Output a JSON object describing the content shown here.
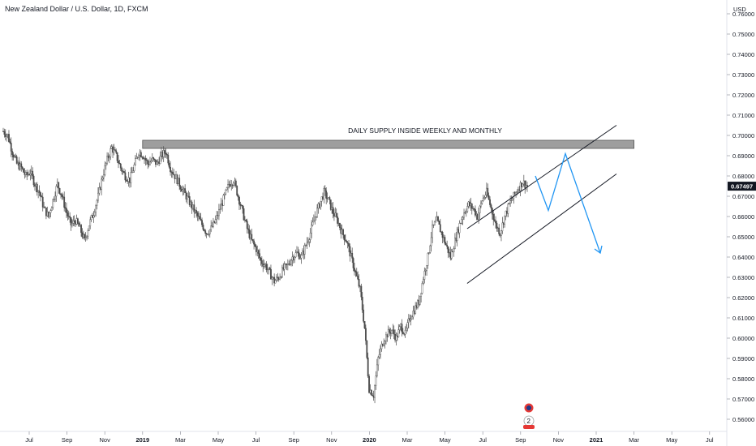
{
  "header": {
    "title": "New Zealand Dollar / U.S. Dollar, 1D, FXCM"
  },
  "currency_label": "USD",
  "chart_data": {
    "type": "candlestick",
    "title": "New Zealand Dollar / U.S. Dollar, 1D, FXCM",
    "y_axis": {
      "unit": "USD",
      "ticks": [
        "0.56000",
        "0.57000",
        "0.58000",
        "0.59000",
        "0.60000",
        "0.61000",
        "0.62000",
        "0.63000",
        "0.64000",
        "0.65000",
        "0.66000",
        "0.67000",
        "0.68000",
        "0.69000",
        "0.70000",
        "0.71000",
        "0.72000",
        "0.73000",
        "0.74000",
        "0.75000",
        "0.76000"
      ],
      "range": [
        0.554,
        0.766
      ]
    },
    "x_axis": {
      "ticks": [
        "Jul",
        "Sep",
        "Nov",
        "2019",
        "Mar",
        "May",
        "Jul",
        "Sep",
        "Nov",
        "2020",
        "Mar",
        "May",
        "Jul",
        "Sep",
        "Nov",
        "2021",
        "Mar",
        "May",
        "Jul"
      ]
    },
    "last_price": {
      "label": "0.67497",
      "value": 0.67497
    },
    "series": [
      {
        "values_sampled": [
          0.702,
          0.7,
          0.692,
          0.686,
          0.684,
          0.68,
          0.682,
          0.676,
          0.672,
          0.664,
          0.66,
          0.668,
          0.676,
          0.67,
          0.662,
          0.656,
          0.658,
          0.654,
          0.648,
          0.656,
          0.662,
          0.67,
          0.68,
          0.688,
          0.694,
          0.69,
          0.684,
          0.68,
          0.678,
          0.685,
          0.692,
          0.69,
          0.686,
          0.688,
          0.686,
          0.69,
          0.692,
          0.684,
          0.68,
          0.676,
          0.672,
          0.668,
          0.664,
          0.66,
          0.656,
          0.652,
          0.654,
          0.658,
          0.664,
          0.67,
          0.676,
          0.678,
          0.67,
          0.662,
          0.654,
          0.648,
          0.644,
          0.638,
          0.636,
          0.632,
          0.628,
          0.63,
          0.634,
          0.636,
          0.64,
          0.642,
          0.64,
          0.646,
          0.652,
          0.66,
          0.666,
          0.672,
          0.668,
          0.662,
          0.658,
          0.652,
          0.648,
          0.64,
          0.632,
          0.624,
          0.605,
          0.575,
          0.572,
          0.59,
          0.598,
          0.602,
          0.604,
          0.6,
          0.606,
          0.602,
          0.61,
          0.614,
          0.618,
          0.63,
          0.64,
          0.654,
          0.658,
          0.652,
          0.646,
          0.64,
          0.648,
          0.656,
          0.662,
          0.666,
          0.664,
          0.66,
          0.668,
          0.672,
          0.664,
          0.656,
          0.652,
          0.66,
          0.666,
          0.67,
          0.674,
          0.677,
          0.675
        ]
      }
    ],
    "annotations": [
      {
        "type": "text",
        "text": "DAILY SUPPLY INSIDE WEEKLY AND MONTHLY"
      },
      {
        "type": "zone",
        "label": "supply",
        "from": 0.6936,
        "to": 0.6976,
        "x_from": "2018-12",
        "x_to": "2021-02"
      },
      {
        "type": "channel",
        "upper": [
          [
            "2020-05",
            0.654
          ],
          [
            "2020-12",
            0.705
          ]
        ],
        "lower": [
          [
            "2020-05",
            0.627
          ],
          [
            "2020-12",
            0.681
          ]
        ]
      },
      {
        "type": "projection_arrow",
        "color": "#2196f3",
        "path": [
          [
            "2020-09",
            0.68
          ],
          [
            "2020-10",
            0.663
          ],
          [
            "2020-11",
            0.691
          ],
          [
            "2020-12",
            0.642
          ]
        ]
      }
    ],
    "colors": {
      "candle": "#4a4a4a",
      "zone": "#9e9e9e",
      "arrow": "#2196f3",
      "price_tag": "#131722"
    }
  }
}
